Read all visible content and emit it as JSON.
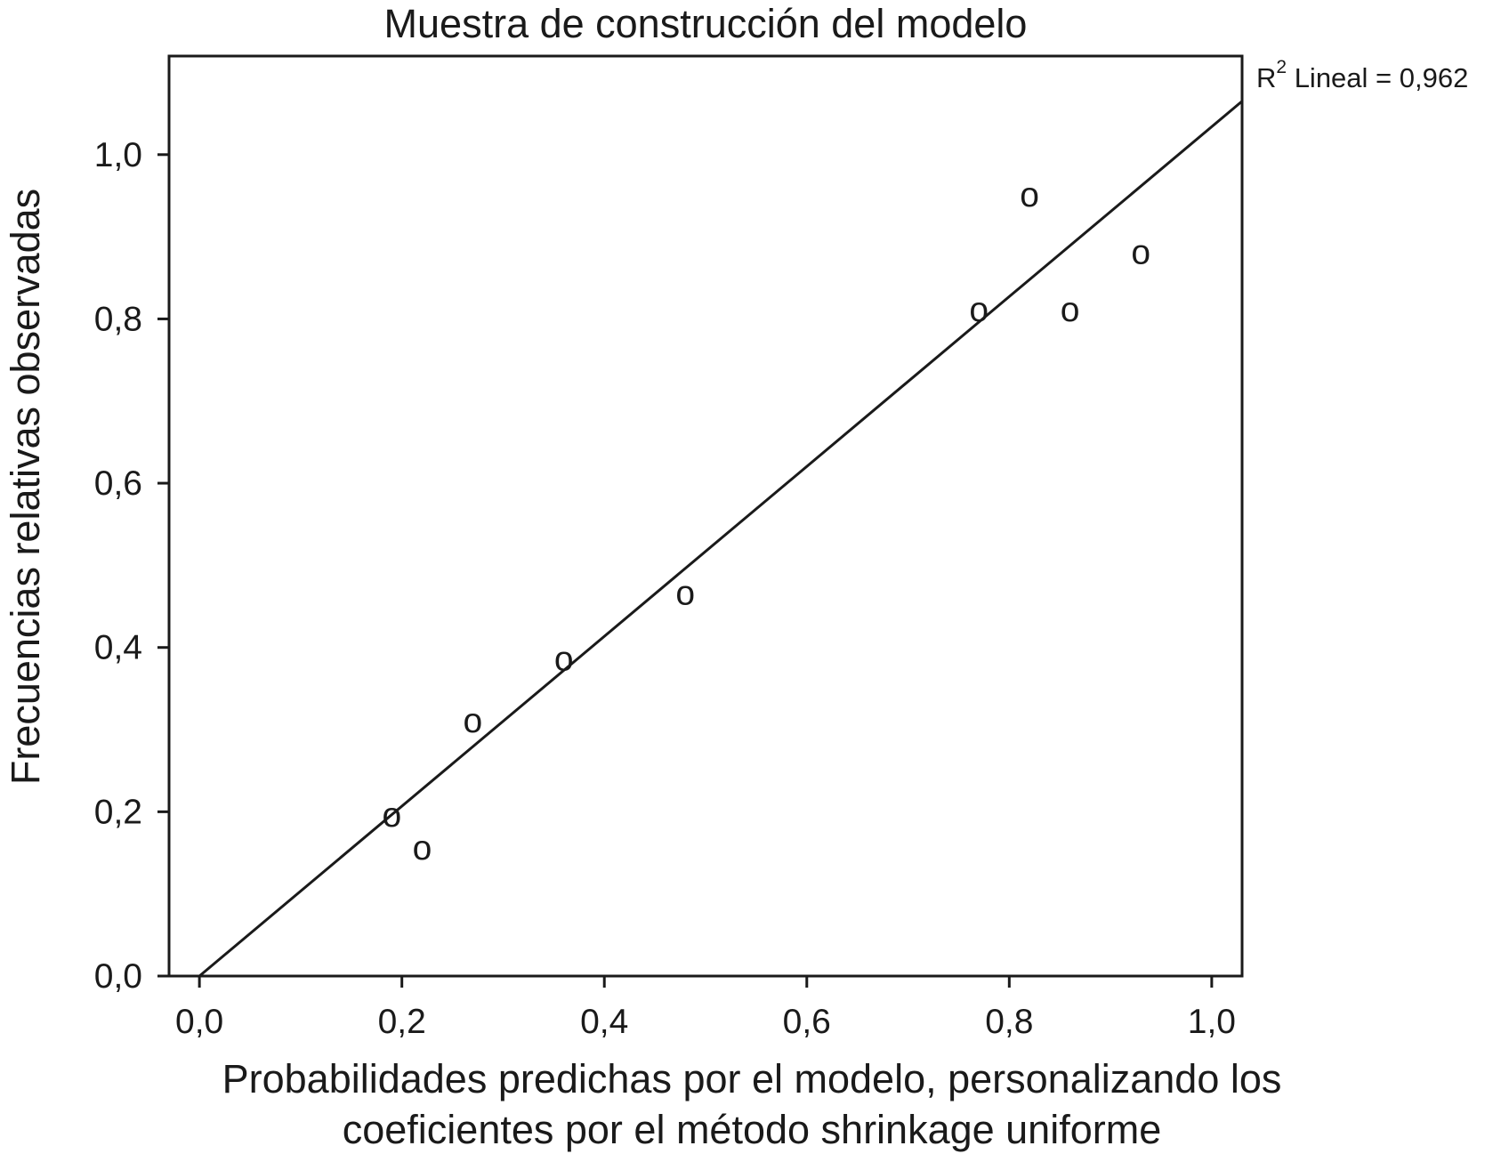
{
  "chart_data": {
    "type": "scatter",
    "title": "Muestra de construcción del modelo",
    "xlabel_lines": [
      "Probabilidades predichas por el modelo, personalizando los",
      "coeficientes por el método shrinkage uniforme"
    ],
    "ylabel": "Frecuencias relativas observadas",
    "xlim": [
      -0.03,
      1.03
    ],
    "ylim": [
      0.0,
      1.12
    ],
    "x_ticks": [
      0.0,
      0.2,
      0.4,
      0.6,
      0.8,
      1.0
    ],
    "y_ticks": [
      0.0,
      0.2,
      0.4,
      0.6,
      0.8,
      1.0
    ],
    "x_tick_labels": [
      "0,0",
      "0,2",
      "0,4",
      "0,6",
      "0,8",
      "1,0"
    ],
    "y_tick_labels": [
      "0,0",
      "0,2",
      "0,4",
      "0,6",
      "0,8",
      "1,0"
    ],
    "marker_symbol": "o",
    "points": [
      {
        "x": 0.19,
        "y": 0.195
      },
      {
        "x": 0.22,
        "y": 0.155
      },
      {
        "x": 0.27,
        "y": 0.31
      },
      {
        "x": 0.36,
        "y": 0.385
      },
      {
        "x": 0.48,
        "y": 0.465
      },
      {
        "x": 0.77,
        "y": 0.81
      },
      {
        "x": 0.82,
        "y": 0.95
      },
      {
        "x": 0.86,
        "y": 0.81
      },
      {
        "x": 0.93,
        "y": 0.88
      }
    ],
    "fit_line": {
      "x": [
        0.0,
        1.03
      ],
      "y": [
        0.0,
        1.065
      ]
    },
    "r2_label": {
      "base": "R",
      "superscript": "2",
      "text": " Lineal = 0,962"
    },
    "grid": false,
    "legend": "none"
  }
}
